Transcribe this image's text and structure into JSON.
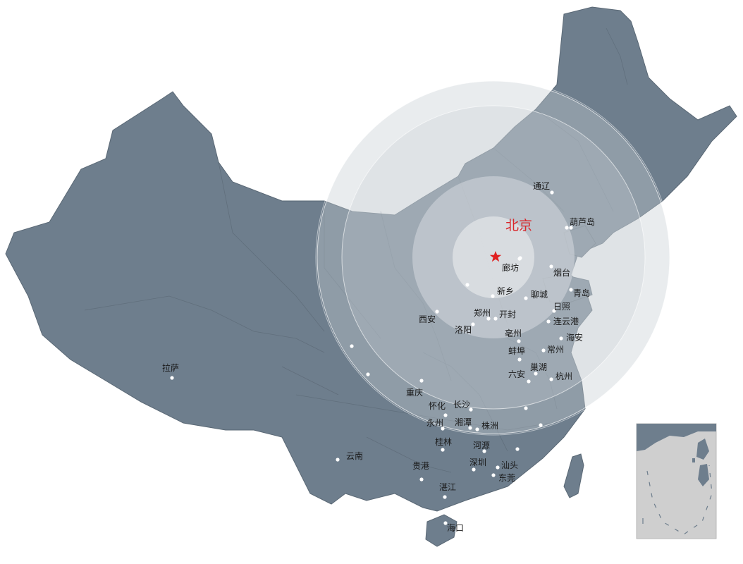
{
  "capital": {
    "name": "北京",
    "marker_color": "#e02020",
    "label_color": "#d8262a"
  },
  "cities": [
    {
      "id": "tongliao",
      "name": "通辽"
    },
    {
      "id": "huludao",
      "name": "葫芦岛"
    },
    {
      "id": "langfang",
      "name": "廊坊"
    },
    {
      "id": "yantai",
      "name": "烟台"
    },
    {
      "id": "xinxiang",
      "name": "新乡"
    },
    {
      "id": "liaocheng",
      "name": "聊城"
    },
    {
      "id": "qingdao",
      "name": "青岛"
    },
    {
      "id": "rizhao",
      "name": "日照"
    },
    {
      "id": "xian",
      "name": "西安"
    },
    {
      "id": "zhengzhou",
      "name": "郑州"
    },
    {
      "id": "kaifeng",
      "name": "开封"
    },
    {
      "id": "lianyungang",
      "name": "连云港"
    },
    {
      "id": "luoyang",
      "name": "洛阳"
    },
    {
      "id": "bozhou",
      "name": "亳州"
    },
    {
      "id": "haian",
      "name": "海安"
    },
    {
      "id": "bengbu",
      "name": "蚌埠"
    },
    {
      "id": "changzhou",
      "name": "常州"
    },
    {
      "id": "lasa",
      "name": "拉萨"
    },
    {
      "id": "chaohu",
      "name": "巢湖"
    },
    {
      "id": "liuan",
      "name": "六安"
    },
    {
      "id": "hangzhou",
      "name": "杭州"
    },
    {
      "id": "chongqing",
      "name": "重庆"
    },
    {
      "id": "huaihua",
      "name": "怀化"
    },
    {
      "id": "changsha",
      "name": "长沙"
    },
    {
      "id": "yongzhou",
      "name": "永州"
    },
    {
      "id": "xiangtan",
      "name": "湘潭"
    },
    {
      "id": "zhuzhou",
      "name": "株洲"
    },
    {
      "id": "guilin",
      "name": "桂林"
    },
    {
      "id": "heyuan",
      "name": "河源"
    },
    {
      "id": "yunnan",
      "name": "云南"
    },
    {
      "id": "shenzhen",
      "name": "深圳"
    },
    {
      "id": "shantou",
      "name": "汕头"
    },
    {
      "id": "guigang",
      "name": "贵港"
    },
    {
      "id": "dongguan",
      "name": "东莞"
    },
    {
      "id": "zhanjiang",
      "name": "湛江"
    },
    {
      "id": "haikou",
      "name": "海口"
    }
  ],
  "colors": {
    "land": "#6e7e8d",
    "land_stroke": "#5a6875",
    "ring_inner": "#d6d9de",
    "ring_mid": "#b7bec6",
    "ring_outer": "#9aa4ae",
    "inset_sea": "#cfcfcf",
    "dot": "#ffffff"
  }
}
